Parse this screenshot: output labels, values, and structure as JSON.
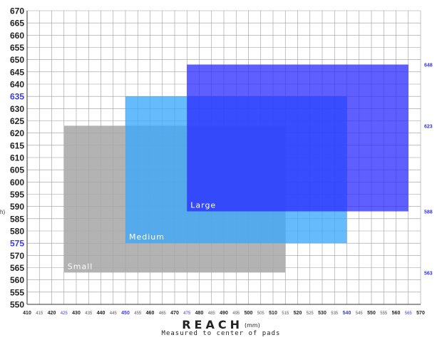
{
  "chart_data": {
    "type": "rectangles",
    "title": "",
    "xlabel": "REACH",
    "xlabel_unit": "(mm)",
    "xlabel_sub": "Measured to center of pads",
    "ylabel_fragment": "h)",
    "xlim": [
      410,
      570
    ],
    "ylim": [
      550,
      670
    ],
    "x_tick_step": 5,
    "y_tick_step": 5,
    "grid": true,
    "highlight_x_ticks": [
      425,
      450,
      475,
      540,
      565
    ],
    "minor_x_ticks": [
      415,
      425,
      435,
      445,
      455,
      465,
      475,
      485,
      495,
      505,
      515,
      525,
      535,
      545,
      555,
      565
    ],
    "highlight_y_ticks": [
      635,
      575
    ],
    "series": [
      {
        "name": "Small",
        "x": [
          425,
          515
        ],
        "y": [
          563,
          623
        ],
        "color": "#a6a6a6",
        "opacity": 0.85
      },
      {
        "name": "Medium",
        "x": [
          450,
          540
        ],
        "y": [
          575,
          635
        ],
        "color": "#3aa8fb",
        "opacity": 0.78
      },
      {
        "name": "Large",
        "x": [
          475,
          565
        ],
        "y": [
          588,
          648
        ],
        "color": "#2a2aff",
        "opacity": 0.75
      }
    ],
    "right_labels": [
      "648",
      "623",
      "588",
      "563"
    ]
  }
}
